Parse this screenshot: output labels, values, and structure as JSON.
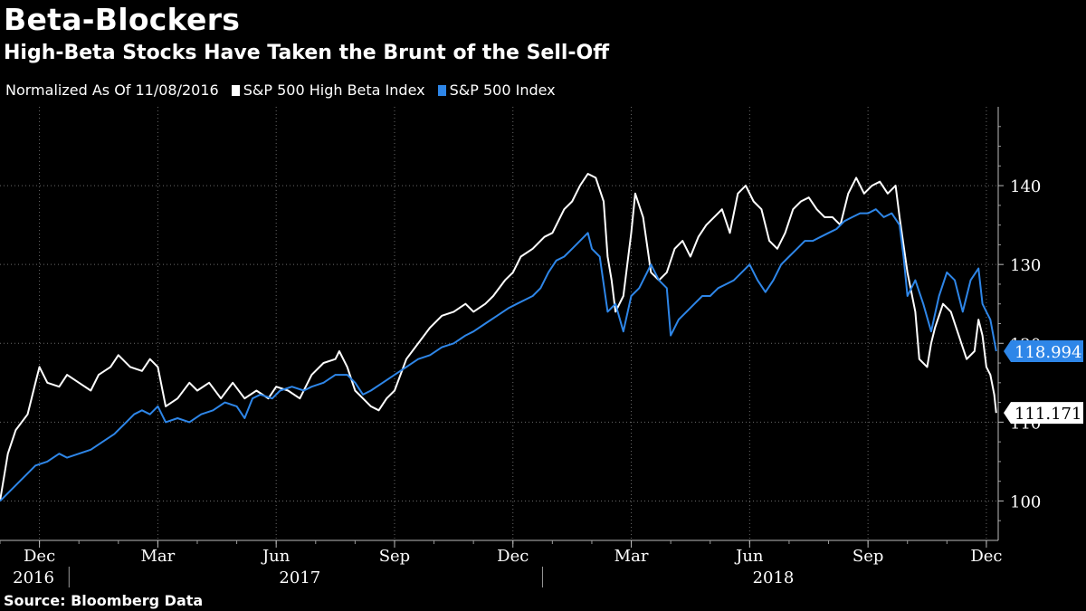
{
  "title": "Beta-Blockers",
  "subtitle": "High-Beta Stocks Have Taken the Brunt of the Sell-Off",
  "legend": {
    "note": "Normalized As Of 11/08/2016",
    "items": [
      {
        "label": "S&P 500 High Beta Index",
        "color": "#ffffff"
      },
      {
        "label": "S&P 500 Index",
        "color": "#2e86e8"
      }
    ]
  },
  "source": "Source: Bloomberg Data",
  "chart_data": {
    "type": "line",
    "x_range": [
      0,
      25.3
    ],
    "ylim": [
      95,
      150
    ],
    "y_ticks": [
      100,
      110,
      120,
      130,
      140
    ],
    "month_ticks": [
      {
        "label": "Dec",
        "t": 1
      },
      {
        "label": "Mar",
        "t": 4
      },
      {
        "label": "Jun",
        "t": 7
      },
      {
        "label": "Sep",
        "t": 10
      },
      {
        "label": "Dec",
        "t": 13
      },
      {
        "label": "Mar",
        "t": 16
      },
      {
        "label": "Jun",
        "t": 19
      },
      {
        "label": "Sep",
        "t": 22
      },
      {
        "label": "Dec",
        "t": 25
      }
    ],
    "year_labels": [
      {
        "label": "2016",
        "t": 0.85
      },
      {
        "label": "2017",
        "t": 7.6
      },
      {
        "label": "2018",
        "t": 19.6
      }
    ],
    "year_dividers": [
      1.75,
      13.75
    ],
    "grid": true,
    "series": [
      {
        "name": "S&P 500 High Beta Index",
        "color": "#ffffff",
        "last_label": "111.171",
        "points": [
          [
            0,
            100
          ],
          [
            0.2,
            106
          ],
          [
            0.4,
            109
          ],
          [
            0.7,
            111
          ],
          [
            0.9,
            115
          ],
          [
            1.0,
            117
          ],
          [
            1.2,
            115
          ],
          [
            1.5,
            114.5
          ],
          [
            1.7,
            116
          ],
          [
            2.0,
            115
          ],
          [
            2.3,
            114
          ],
          [
            2.5,
            116
          ],
          [
            2.8,
            117
          ],
          [
            3.0,
            118.5
          ],
          [
            3.3,
            117
          ],
          [
            3.6,
            116.5
          ],
          [
            3.8,
            118
          ],
          [
            4.0,
            117
          ],
          [
            4.2,
            112
          ],
          [
            4.5,
            113
          ],
          [
            4.8,
            115
          ],
          [
            5.0,
            114
          ],
          [
            5.3,
            115
          ],
          [
            5.6,
            113
          ],
          [
            5.9,
            115
          ],
          [
            6.2,
            113
          ],
          [
            6.5,
            114
          ],
          [
            6.8,
            113
          ],
          [
            7.0,
            114.5
          ],
          [
            7.3,
            114
          ],
          [
            7.6,
            113
          ],
          [
            7.9,
            116
          ],
          [
            8.2,
            117.5
          ],
          [
            8.5,
            118
          ],
          [
            8.6,
            119
          ],
          [
            8.8,
            117
          ],
          [
            9.0,
            114
          ],
          [
            9.2,
            113
          ],
          [
            9.4,
            112
          ],
          [
            9.6,
            111.5
          ],
          [
            9.8,
            113
          ],
          [
            10.0,
            114
          ],
          [
            10.3,
            118
          ],
          [
            10.6,
            120
          ],
          [
            10.9,
            122
          ],
          [
            11.2,
            123.5
          ],
          [
            11.5,
            124
          ],
          [
            11.8,
            125
          ],
          [
            12.0,
            124
          ],
          [
            12.3,
            125
          ],
          [
            12.5,
            126
          ],
          [
            12.8,
            128
          ],
          [
            13.0,
            129
          ],
          [
            13.2,
            131
          ],
          [
            13.5,
            132
          ],
          [
            13.8,
            133.5
          ],
          [
            14.0,
            134
          ],
          [
            14.3,
            137
          ],
          [
            14.5,
            138
          ],
          [
            14.7,
            140
          ],
          [
            14.9,
            141.5
          ],
          [
            15.1,
            141
          ],
          [
            15.3,
            138
          ],
          [
            15.4,
            131
          ],
          [
            15.5,
            128
          ],
          [
            15.6,
            124
          ],
          [
            15.8,
            126
          ],
          [
            16.0,
            134
          ],
          [
            16.1,
            139
          ],
          [
            16.3,
            136
          ],
          [
            16.5,
            129
          ],
          [
            16.7,
            128
          ],
          [
            16.9,
            129
          ],
          [
            17.1,
            132
          ],
          [
            17.3,
            133
          ],
          [
            17.5,
            131
          ],
          [
            17.7,
            133.5
          ],
          [
            17.9,
            135
          ],
          [
            18.1,
            136
          ],
          [
            18.3,
            137
          ],
          [
            18.5,
            134
          ],
          [
            18.7,
            139
          ],
          [
            18.9,
            140
          ],
          [
            19.1,
            138
          ],
          [
            19.3,
            137
          ],
          [
            19.5,
            133
          ],
          [
            19.7,
            132
          ],
          [
            19.9,
            134
          ],
          [
            20.1,
            137
          ],
          [
            20.3,
            138
          ],
          [
            20.5,
            138.5
          ],
          [
            20.7,
            137
          ],
          [
            20.9,
            136
          ],
          [
            21.1,
            136
          ],
          [
            21.3,
            135
          ],
          [
            21.5,
            139
          ],
          [
            21.7,
            141
          ],
          [
            21.9,
            139
          ],
          [
            22.1,
            140
          ],
          [
            22.3,
            140.5
          ],
          [
            22.5,
            139
          ],
          [
            22.7,
            140
          ],
          [
            22.8,
            136
          ],
          [
            23.0,
            129
          ],
          [
            23.2,
            124
          ],
          [
            23.3,
            118
          ],
          [
            23.5,
            117
          ],
          [
            23.6,
            120
          ],
          [
            23.7,
            122
          ],
          [
            23.9,
            125
          ],
          [
            24.1,
            124
          ],
          [
            24.3,
            121
          ],
          [
            24.5,
            118
          ],
          [
            24.7,
            119
          ],
          [
            24.8,
            123
          ],
          [
            24.9,
            121
          ],
          [
            25.0,
            117
          ],
          [
            25.1,
            116
          ],
          [
            25.2,
            113.5
          ],
          [
            25.25,
            111.171
          ]
        ]
      },
      {
        "name": "S&P 500 Index",
        "color": "#2e86e8",
        "last_label": "118.994",
        "points": [
          [
            0,
            100
          ],
          [
            0.3,
            101.5
          ],
          [
            0.6,
            103
          ],
          [
            0.9,
            104.5
          ],
          [
            1.2,
            105
          ],
          [
            1.5,
            106
          ],
          [
            1.7,
            105.5
          ],
          [
            2.0,
            106
          ],
          [
            2.3,
            106.5
          ],
          [
            2.6,
            107.5
          ],
          [
            2.9,
            108.5
          ],
          [
            3.2,
            110
          ],
          [
            3.4,
            111
          ],
          [
            3.6,
            111.5
          ],
          [
            3.8,
            111
          ],
          [
            4.0,
            112
          ],
          [
            4.2,
            110
          ],
          [
            4.5,
            110.5
          ],
          [
            4.8,
            110
          ],
          [
            5.1,
            111
          ],
          [
            5.4,
            111.5
          ],
          [
            5.7,
            112.5
          ],
          [
            6.0,
            112
          ],
          [
            6.2,
            110.5
          ],
          [
            6.4,
            113
          ],
          [
            6.6,
            113.5
          ],
          [
            6.9,
            113
          ],
          [
            7.1,
            114
          ],
          [
            7.4,
            114.5
          ],
          [
            7.7,
            114
          ],
          [
            7.9,
            114.5
          ],
          [
            8.2,
            115
          ],
          [
            8.5,
            116
          ],
          [
            8.8,
            116
          ],
          [
            9.0,
            115
          ],
          [
            9.2,
            113.5
          ],
          [
            9.4,
            114
          ],
          [
            9.7,
            115
          ],
          [
            10.0,
            116
          ],
          [
            10.3,
            117
          ],
          [
            10.6,
            118
          ],
          [
            10.9,
            118.5
          ],
          [
            11.2,
            119.5
          ],
          [
            11.5,
            120
          ],
          [
            11.8,
            121
          ],
          [
            12.0,
            121.5
          ],
          [
            12.3,
            122.5
          ],
          [
            12.6,
            123.5
          ],
          [
            12.9,
            124.5
          ],
          [
            13.1,
            125
          ],
          [
            13.3,
            125.5
          ],
          [
            13.5,
            126
          ],
          [
            13.7,
            127
          ],
          [
            13.9,
            129
          ],
          [
            14.1,
            130.5
          ],
          [
            14.3,
            131
          ],
          [
            14.5,
            132
          ],
          [
            14.7,
            133
          ],
          [
            14.9,
            134
          ],
          [
            15.0,
            132
          ],
          [
            15.2,
            131
          ],
          [
            15.4,
            124
          ],
          [
            15.6,
            125
          ],
          [
            15.8,
            121.5
          ],
          [
            16.0,
            126
          ],
          [
            16.2,
            127
          ],
          [
            16.4,
            129
          ],
          [
            16.5,
            130
          ],
          [
            16.7,
            128
          ],
          [
            16.9,
            127
          ],
          [
            17.0,
            121
          ],
          [
            17.2,
            123
          ],
          [
            17.4,
            124
          ],
          [
            17.6,
            125
          ],
          [
            17.8,
            126
          ],
          [
            18.0,
            126
          ],
          [
            18.2,
            127
          ],
          [
            18.4,
            127.5
          ],
          [
            18.6,
            128
          ],
          [
            18.8,
            129
          ],
          [
            19.0,
            130
          ],
          [
            19.2,
            128
          ],
          [
            19.4,
            126.5
          ],
          [
            19.6,
            128
          ],
          [
            19.8,
            130
          ],
          [
            20.0,
            131
          ],
          [
            20.2,
            132
          ],
          [
            20.4,
            133
          ],
          [
            20.6,
            133
          ],
          [
            20.8,
            133.5
          ],
          [
            21.0,
            134
          ],
          [
            21.2,
            134.5
          ],
          [
            21.4,
            135.5
          ],
          [
            21.6,
            136
          ],
          [
            21.8,
            136.5
          ],
          [
            22.0,
            136.5
          ],
          [
            22.2,
            137
          ],
          [
            22.4,
            136
          ],
          [
            22.6,
            136.5
          ],
          [
            22.8,
            135
          ],
          [
            22.9,
            131
          ],
          [
            23.0,
            126
          ],
          [
            23.2,
            128
          ],
          [
            23.4,
            125
          ],
          [
            23.6,
            121.5
          ],
          [
            23.8,
            126
          ],
          [
            24.0,
            129
          ],
          [
            24.2,
            128
          ],
          [
            24.4,
            124
          ],
          [
            24.6,
            128
          ],
          [
            24.8,
            129.5
          ],
          [
            24.9,
            125
          ],
          [
            25.0,
            124
          ],
          [
            25.1,
            123
          ],
          [
            25.25,
            118.994
          ]
        ]
      }
    ]
  }
}
